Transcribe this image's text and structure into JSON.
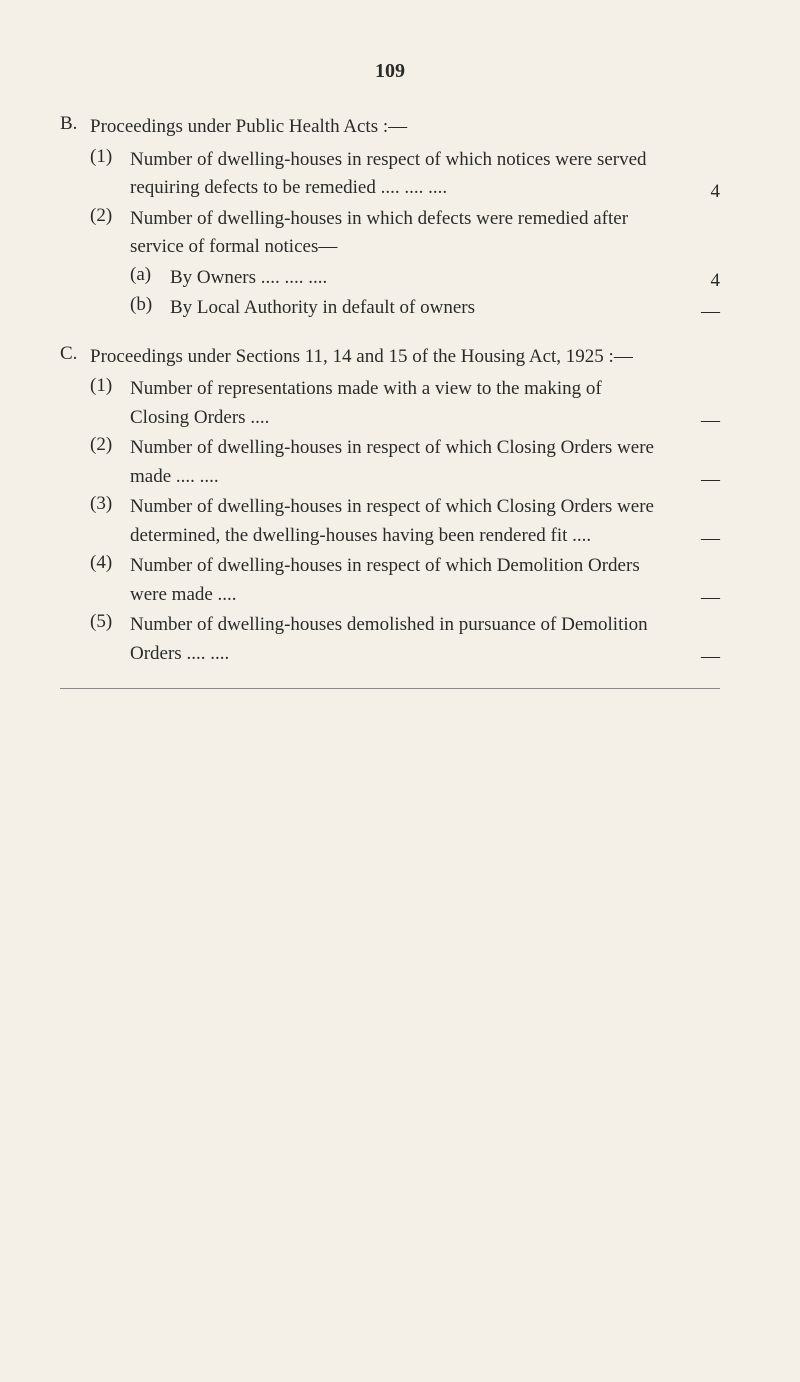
{
  "page_number": "109",
  "section_b": {
    "letter": "B.",
    "heading": "Proceedings under Public Health Acts :—",
    "items": [
      {
        "num": "(1)",
        "text": "Number of dwelling-houses in respect of which notices were served requiring defects to be remedied    ....    ....    ....",
        "value": "4"
      },
      {
        "num": "(2)",
        "text": "Number of dwelling-houses in which defects were remedied after service of formal notices—",
        "value": ""
      }
    ],
    "subitems": [
      {
        "letter": "(a)",
        "text": "By Owners    ....    ....    ....",
        "value": "4"
      },
      {
        "letter": "(b)",
        "text": "By Local Authority in default of owners",
        "value": "—"
      }
    ]
  },
  "section_c": {
    "letter": "C.",
    "heading": "Proceedings under Sections 11, 14 and 15 of the Housing Act, 1925 :—",
    "items": [
      {
        "num": "(1)",
        "text": "Number of representations made with a view to the making of Closing Orders    ....",
        "value": "—"
      },
      {
        "num": "(2)",
        "text": "Number of dwelling-houses in respect of which Closing Orders were made ....    ....",
        "value": "—"
      },
      {
        "num": "(3)",
        "text": "Number of dwelling-houses in respect of which Closing Orders were determined, the dwelling-houses having been rendered fit    ....",
        "value": "—"
      },
      {
        "num": "(4)",
        "text": "Number of dwelling-houses in respect of which Demolition Orders were made    ....",
        "value": "—"
      },
      {
        "num": "(5)",
        "text": "Number of dwelling-houses demolished in pursuance of Demolition Orders    ....    ....",
        "value": "—"
      }
    ]
  }
}
